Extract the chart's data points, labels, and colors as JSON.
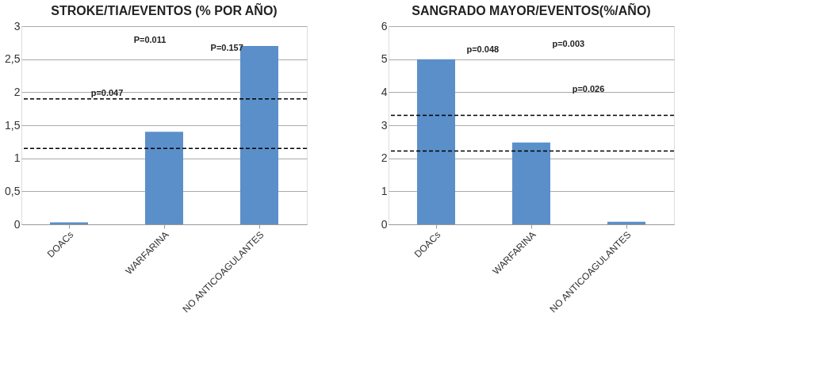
{
  "chart_data": [
    {
      "type": "bar",
      "title": "STROKE/TIA/EVENTOS (% POR AÑO)",
      "categories": [
        "DOACs",
        "WARFARINA",
        "NO ANTICOAGULANTES"
      ],
      "values": [
        0.03,
        1.4,
        2.7
      ],
      "color": "#5b8fc9",
      "ylim": [
        0,
        3
      ],
      "yticks": [
        0,
        {
          "value": 0.5,
          "label": "0,5"
        },
        1,
        {
          "value": 1.5,
          "label": "1,5"
        },
        2,
        {
          "value": 2.5,
          "label": "2,5"
        },
        3
      ],
      "grid": "y",
      "ref_lines": [
        {
          "axis": "y",
          "value": 1.9,
          "color": "#000000",
          "line_style": "dashed"
        },
        {
          "axis": "y",
          "value": 1.15,
          "color": "#000000",
          "line_style": "dashed"
        }
      ],
      "annotations": [
        "P=0.011",
        "P=0.157",
        "p=0.047"
      ]
    },
    {
      "type": "bar",
      "title": "SANGRADO MAYOR/EVENTOS(%/AÑO)",
      "categories": [
        "DOACs",
        "WARFARINA",
        "NO ANTICOAGULANTES"
      ],
      "values": [
        5.0,
        2.48,
        0.08
      ],
      "color": "#5b8fc9",
      "ylim": [
        0,
        6
      ],
      "yticks": [
        0,
        1,
        2,
        3,
        4,
        5,
        6
      ],
      "grid": "y",
      "ref_lines": [
        {
          "axis": "y",
          "value": 3.3,
          "color": "#000000",
          "line_style": "dashed"
        },
        {
          "axis": "y",
          "value": 2.22,
          "color": "#000000",
          "line_style": "dashed"
        }
      ],
      "annotations": [
        "p=0.048",
        "p=0.003",
        "p=0.026"
      ]
    }
  ]
}
